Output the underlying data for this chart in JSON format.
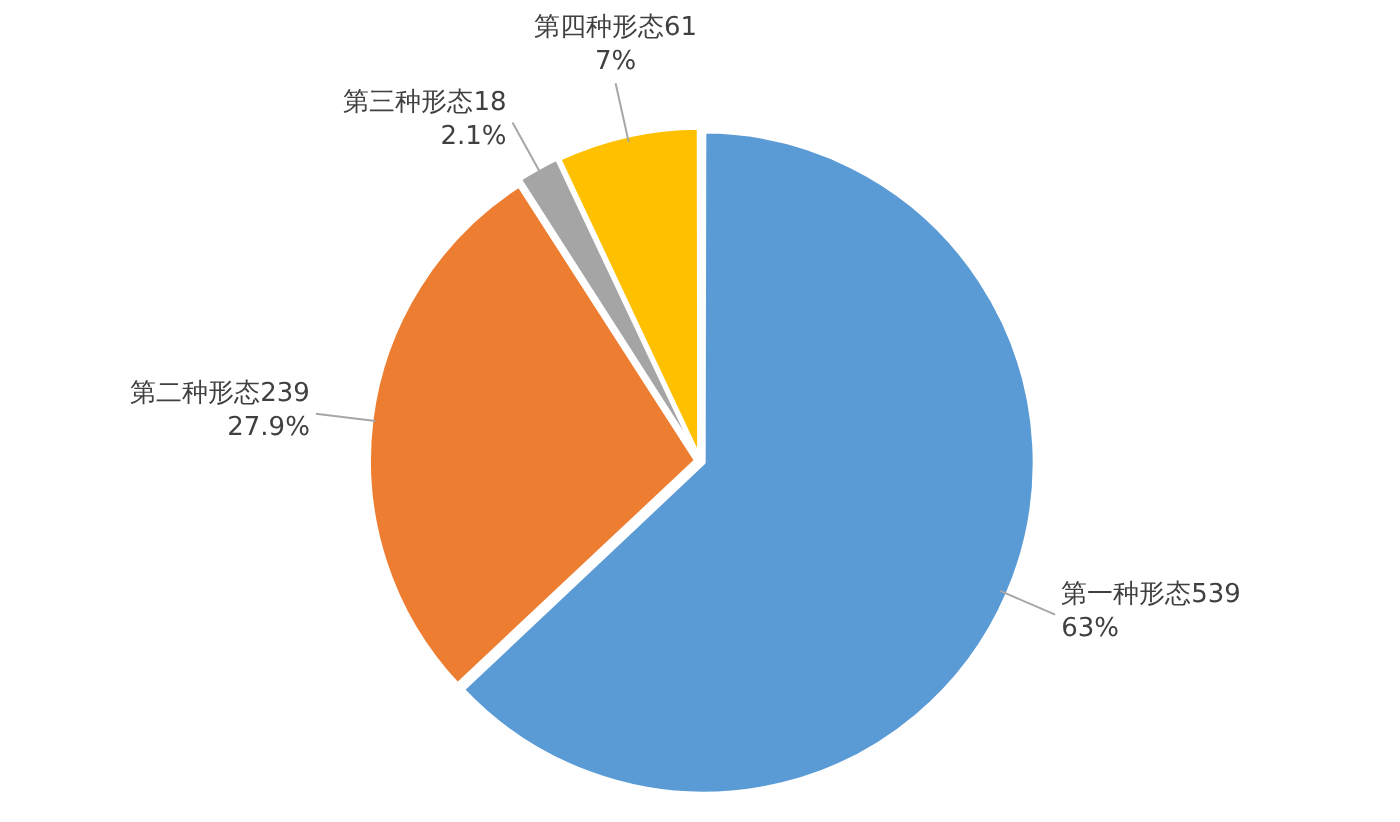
{
  "chart_data": {
    "type": "pie",
    "categories": [
      "第一种形态539",
      "第二种形态239",
      "第三种形态18",
      "第四种形态61"
    ],
    "values": [
      63,
      27.9,
      2.1,
      7
    ],
    "colors": [
      "#5b9bd5",
      "#ed7d31",
      "#a5a5a5",
      "#ffc000"
    ],
    "value_labels": [
      "63%",
      "27.9%",
      "2.1%",
      "7%"
    ]
  }
}
